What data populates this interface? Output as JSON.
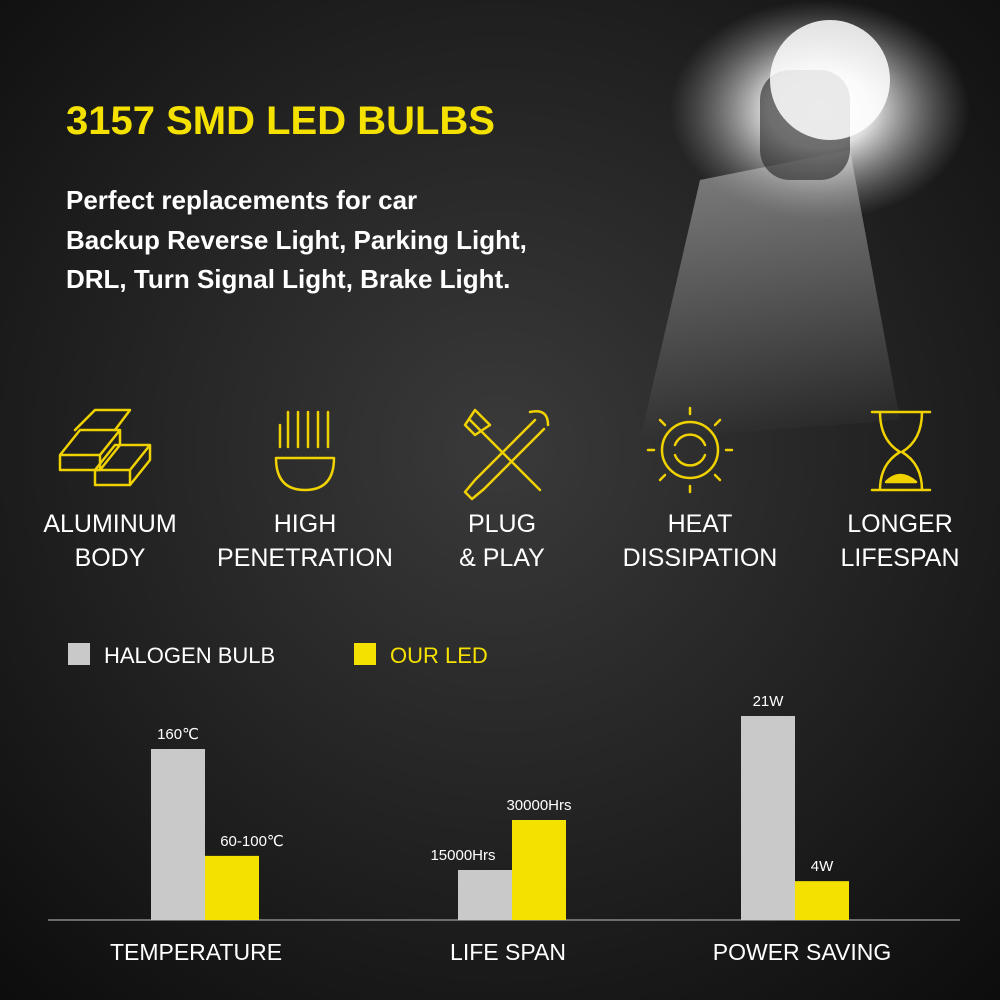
{
  "header": {
    "title": "3157 SMD LED BULBS",
    "lines": [
      "Perfect replacements for car",
      "Backup Reverse Light, Parking Light,",
      "DRL, Turn Signal Light, Brake Light."
    ]
  },
  "features": [
    {
      "lines": [
        "ALUMINUM",
        "BODY"
      ]
    },
    {
      "lines": [
        "HIGH",
        "PENETRATION"
      ]
    },
    {
      "lines": [
        "PLUG",
        "& PLAY"
      ]
    },
    {
      "lines": [
        "HEAT",
        "DISSIPATION"
      ]
    },
    {
      "lines": [
        "LONGER",
        "LIFESPAN"
      ]
    }
  ],
  "chart_data": {
    "type": "bar",
    "categories": [
      "TEMPERATURE",
      "LIFE SPAN",
      "POWER SAVING"
    ],
    "series": [
      {
        "name": "HALOGEN BULB",
        "color": "#c9c9c9",
        "values": [
          160,
          15000,
          21
        ],
        "value_labels": [
          "160℃",
          "15000Hrs",
          "21W"
        ]
      },
      {
        "name": "OUR LED",
        "color": "#f5e100",
        "values": [
          60,
          30000,
          4
        ],
        "value_labels": [
          "60-100℃",
          "30000Hrs",
          "4W"
        ]
      }
    ]
  }
}
